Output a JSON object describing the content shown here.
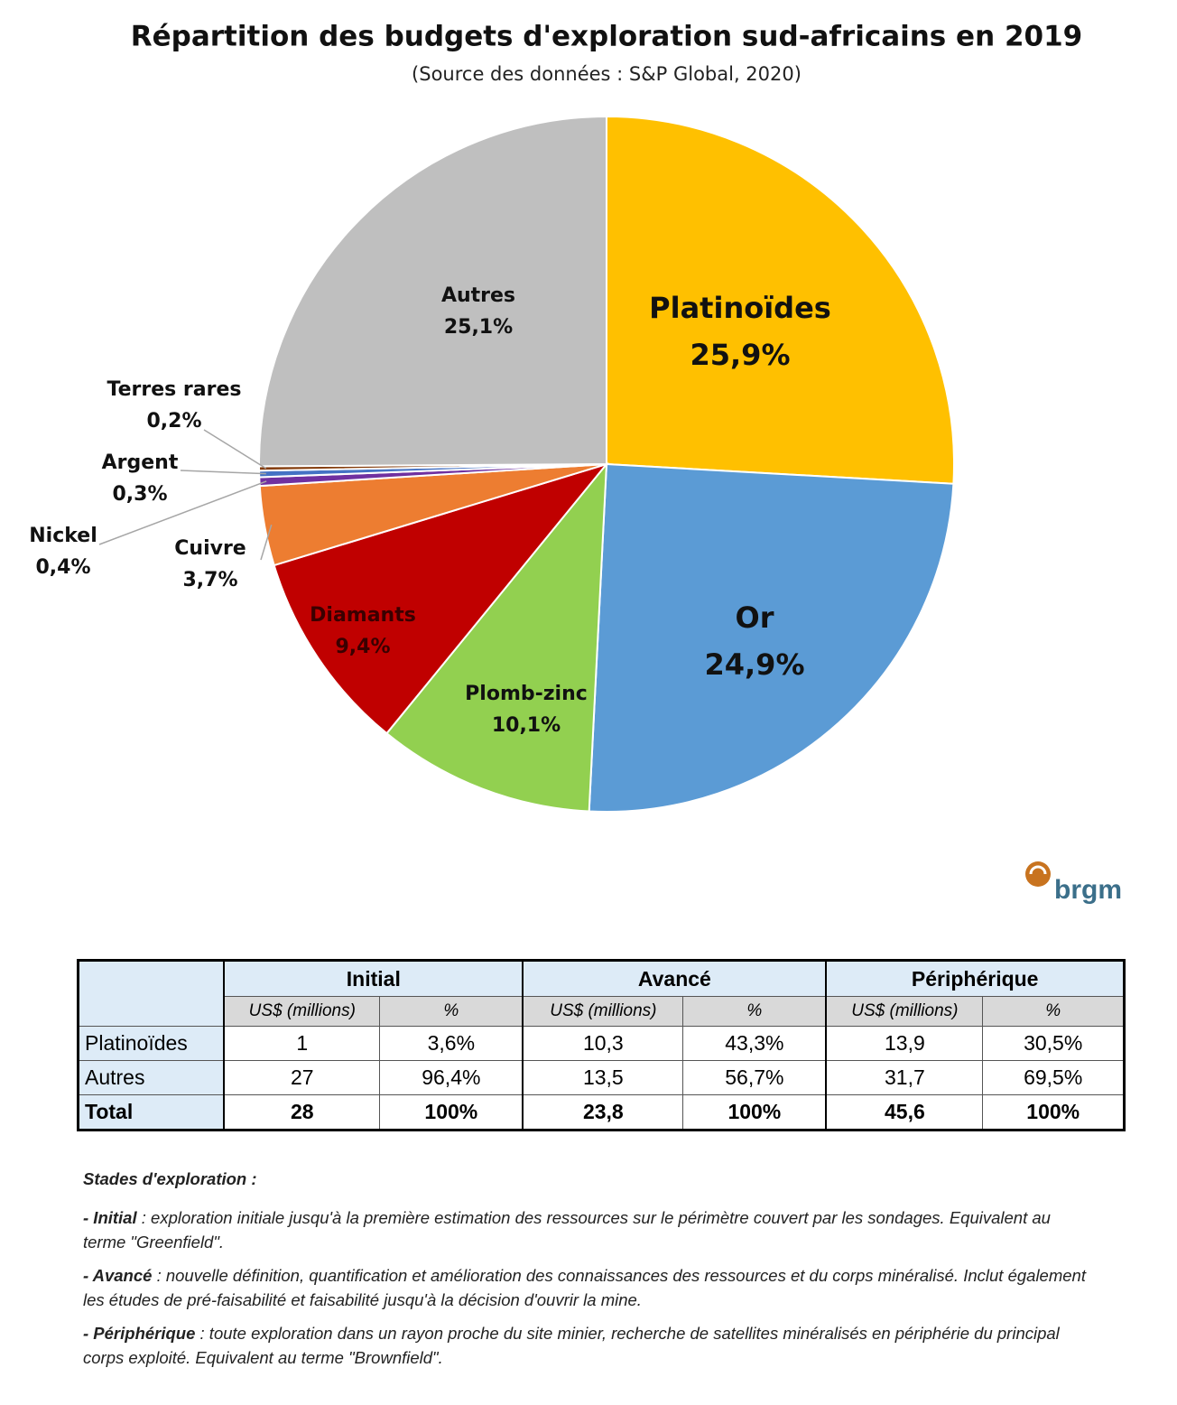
{
  "chart_data": {
    "type": "pie",
    "title": "Répartition des budgets d'exploration sud-africains en 2019",
    "subtitle": "(Source des données : S&P Global, 2020)",
    "categories": [
      "Platinoïdes",
      "Or",
      "Plomb-zinc",
      "Diamants",
      "Cuivre",
      "Nickel",
      "Argent",
      "Terres rares",
      "Autres"
    ],
    "values": [
      25.9,
      24.9,
      10.1,
      9.4,
      3.7,
      0.4,
      0.3,
      0.2,
      25.1
    ],
    "value_labels": [
      "25,9%",
      "24,9%",
      "10,1%",
      "9,4%",
      "3,7%",
      "0,4%",
      "0,3%",
      "0,2%",
      "25,1%"
    ],
    "colors": [
      "#ffc000",
      "#5b9bd5",
      "#92d050",
      "#c00000",
      "#ed7d31",
      "#7030a0",
      "#4472c4",
      "#843c0c",
      "#bfbfbf"
    ]
  },
  "logo": "brgm",
  "table": {
    "groups": [
      "Initial",
      "Avancé",
      "Périphérique"
    ],
    "subheaders": [
      "US$ (millions)",
      "%",
      "US$ (millions)",
      "%",
      "US$ (millions)",
      "%"
    ],
    "rows": [
      [
        "Platinoïdes",
        "1",
        "3,6%",
        "10,3",
        "43,3%",
        "13,9",
        "30,5%"
      ],
      [
        "Autres",
        "27",
        "96,4%",
        "13,5",
        "56,7%",
        "31,7",
        "69,5%"
      ],
      [
        "Total",
        "28",
        "100%",
        "23,8",
        "100%",
        "45,6",
        "100%"
      ]
    ]
  },
  "notes": {
    "title": "Stades d'exploration :",
    "items": [
      {
        "term": "- Initial",
        "text": " : exploration initiale jusqu'à la première estimation des ressources sur le périmètre couvert par les sondages. Equivalent au terme \"Greenfield\"."
      },
      {
        "term": "- Avancé",
        "text": " : nouvelle définition, quantification et amélioration des connaissances des ressources et du corps minéralisé. Inclut également les études de pré-faisabilité et faisabilité jusqu'à la décision d'ouvrir la mine."
      },
      {
        "term": "- Périphérique",
        "text": " : toute exploration dans un rayon proche du site minier, recherche de satellites minéralisés en périphérie du principal corps exploité. Equivalent au terme \"Brownfield\"."
      }
    ]
  }
}
